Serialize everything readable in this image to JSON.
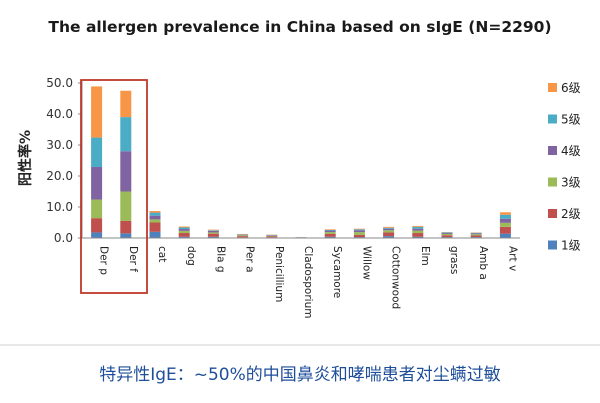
{
  "chart_data": {
    "type": "bar",
    "stacked": true,
    "title": "The allergen prevalence in China based on sIgE (N=2290)",
    "ylabel": "阳性率%",
    "xlabel": "",
    "ylim": [
      0,
      50
    ],
    "yticks": [
      "0.0",
      "10.0",
      "20.0",
      "30.0",
      "40.0",
      "50.0"
    ],
    "grid": false,
    "legend_position": "right",
    "highlight_categories": [
      "Der p",
      "Der f"
    ],
    "categories": [
      "Der p",
      "Der f",
      "cat",
      "dog",
      "Bla g",
      "Per a",
      "Penicillium",
      "Cladosporium",
      "Sycamore",
      "Willow",
      "Cottonwood",
      "Elm",
      "grass",
      "Amb a",
      "Art v"
    ],
    "series": [
      {
        "name": "1级",
        "color": "#4f81bd",
        "values": [
          1.8,
          1.5,
          2.0,
          0.4,
          0.4,
          0.2,
          0.2,
          0.05,
          0.4,
          0.3,
          0.6,
          0.4,
          0.3,
          0.3,
          1.4
        ]
      },
      {
        "name": "2级",
        "color": "#c0504d",
        "values": [
          4.6,
          4.0,
          3.0,
          1.2,
          1.0,
          0.4,
          0.3,
          0.05,
          0.9,
          0.7,
          1.2,
          1.2,
          0.6,
          0.5,
          2.2
        ]
      },
      {
        "name": "3级",
        "color": "#9bbb59",
        "values": [
          6.0,
          9.5,
          1.0,
          0.7,
          0.4,
          0.3,
          0.2,
          0.05,
          0.6,
          0.9,
          0.7,
          0.8,
          0.4,
          0.4,
          1.3
        ]
      },
      {
        "name": "4级",
        "color": "#8064a2",
        "values": [
          10.5,
          13.0,
          1.2,
          0.6,
          0.5,
          0.2,
          0.2,
          0.05,
          0.5,
          0.6,
          0.5,
          0.6,
          0.3,
          0.3,
          1.3
        ]
      },
      {
        "name": "5级",
        "color": "#4bacc6",
        "values": [
          9.5,
          11.0,
          1.0,
          0.5,
          0.2,
          0.1,
          0.1,
          0.05,
          0.2,
          0.3,
          0.3,
          0.6,
          0.2,
          0.2,
          1.3
        ]
      },
      {
        "name": "6级",
        "color": "#f79646",
        "values": [
          16.5,
          8.5,
          0.5,
          0.3,
          0.2,
          0.1,
          0.1,
          0.05,
          0.2,
          0.2,
          0.3,
          0.3,
          0.1,
          0.1,
          0.8
        ]
      }
    ]
  },
  "footer": {
    "caption": "特异性IgE：~50%的中国鼻炎和哮喘患者对尘螨过敏",
    "text_color": "#1f4e9a"
  },
  "colors": {
    "highlight_box": "#c0392b",
    "axis": "#888888"
  }
}
